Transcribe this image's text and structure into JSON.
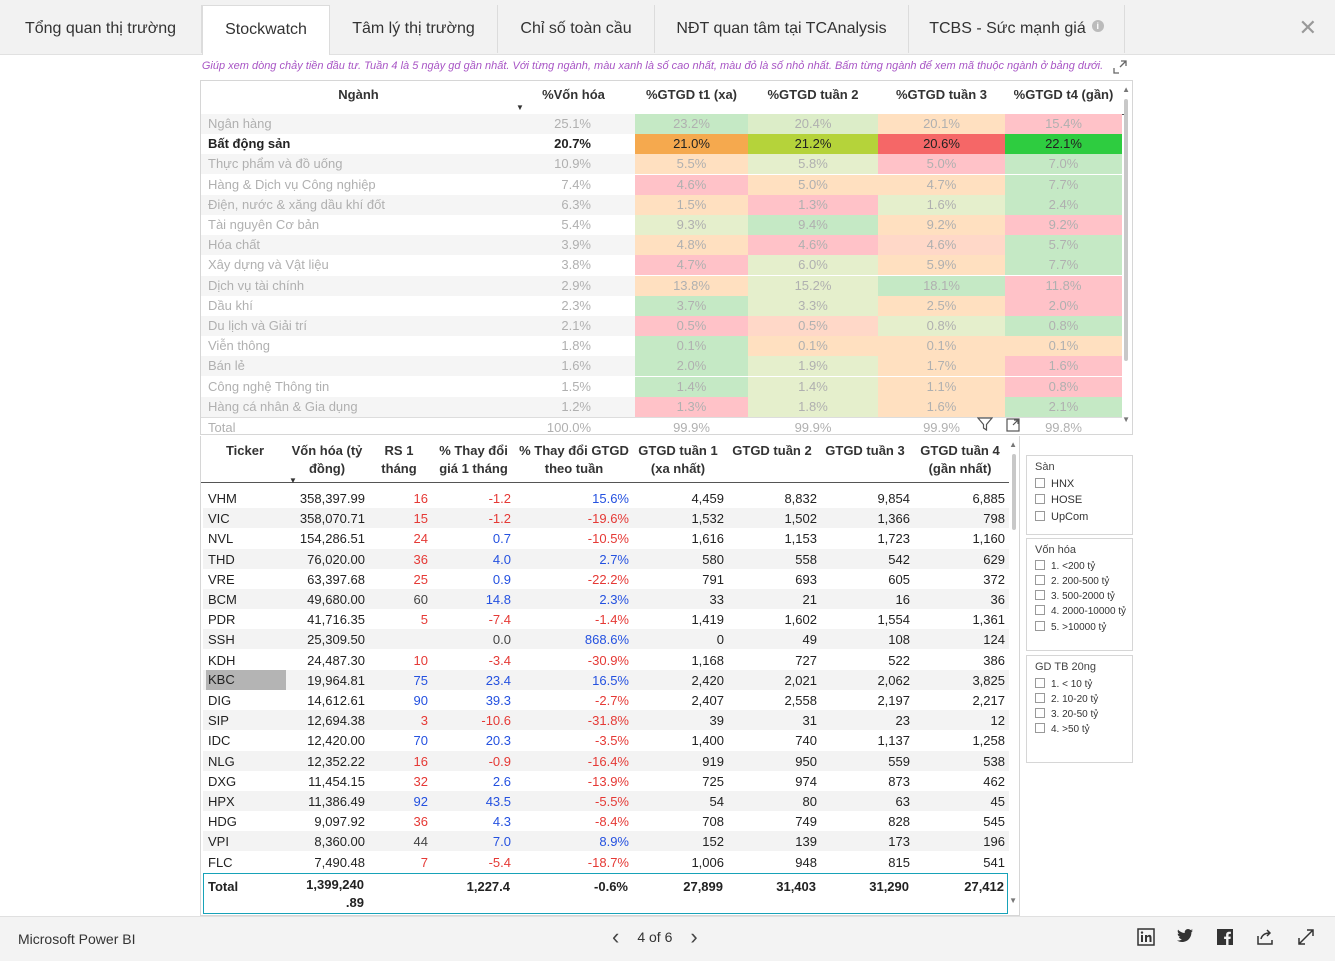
{
  "tabs": [
    {
      "label": "Tổng quan thị trường"
    },
    {
      "label": "Stockwatch"
    },
    {
      "label": "Tâm lý thị trường"
    },
    {
      "label": "Chỉ số toàn cầu"
    },
    {
      "label": "NĐT quan tâm tại TCAnalysis"
    },
    {
      "label": "TCBS - Sức mạnh giá"
    }
  ],
  "close_label": "✕",
  "hint": "Giúp xem dòng chảy tiền đầu tư. Tuần 4 là 5 ngày gd gần nhất. Với từng ngành, màu xanh là số cao nhất, màu đỏ là số nhỏ nhất. Bấm từng ngành để xem mã thuộc ngành ở bảng dưới.",
  "sector_table": {
    "headers": [
      "Ngành",
      "%Vốn hóa",
      "%GTGD t1 (xa)",
      "%GTGD tuần 2",
      "%GTGD tuần 3",
      "%GTGD t4 (gần)"
    ],
    "rows": [
      {
        "name": "Ngân hàng",
        "cap": "25.1%",
        "v": [
          "23.2%",
          "20.4%",
          "20.1%",
          "15.4%"
        ],
        "bg": [
          "#c5e9c5",
          "#dcedc8",
          "#ffe0c0",
          "#ffc2c8"
        ]
      },
      {
        "name": "Bất động sản",
        "cap": "20.7%",
        "v": [
          "21.0%",
          "21.2%",
          "20.6%",
          "22.1%"
        ],
        "bg": [
          "#f5a94e",
          "#b5d33a",
          "#f56767",
          "#2ecc40"
        ]
      },
      {
        "name": "Thực phẩm và đồ uống",
        "cap": "10.9%",
        "v": [
          "5.5%",
          "5.8%",
          "5.0%",
          "7.0%"
        ],
        "bg": [
          "#ffe0c0",
          "#e5efcc",
          "#ffc2c8",
          "#c5e9c5"
        ]
      },
      {
        "name": "Hàng & Dịch vụ Công nghiệp",
        "cap": "7.4%",
        "v": [
          "4.6%",
          "5.0%",
          "4.7%",
          "7.7%"
        ],
        "bg": [
          "#ffc2c8",
          "#ffe0c0",
          "#ffe0c0",
          "#c5e9c5"
        ]
      },
      {
        "name": "Điện, nước & xăng dầu khí đốt",
        "cap": "6.3%",
        "v": [
          "1.5%",
          "1.3%",
          "1.6%",
          "2.4%"
        ],
        "bg": [
          "#ffe0c0",
          "#ffc2c8",
          "#e5efcc",
          "#c5e9c5"
        ]
      },
      {
        "name": "Tài nguyên Cơ bản",
        "cap": "5.4%",
        "v": [
          "9.3%",
          "9.4%",
          "9.2%",
          "9.2%"
        ],
        "bg": [
          "#e5efcc",
          "#c5e9c5",
          "#ffe0c0",
          "#ffc2c8"
        ]
      },
      {
        "name": "Hóa chất",
        "cap": "3.9%",
        "v": [
          "4.8%",
          "4.6%",
          "4.6%",
          "5.7%"
        ],
        "bg": [
          "#ffe0c0",
          "#ffc2c8",
          "#ffd8c8",
          "#c5e9c5"
        ]
      },
      {
        "name": "Xây dựng và Vật liệu",
        "cap": "3.8%",
        "v": [
          "4.7%",
          "6.0%",
          "5.9%",
          "7.7%"
        ],
        "bg": [
          "#ffc2c8",
          "#e5efcc",
          "#ffe0c0",
          "#c5e9c5"
        ]
      },
      {
        "name": "Dịch vụ tài chính",
        "cap": "2.9%",
        "v": [
          "13.8%",
          "15.2%",
          "18.1%",
          "11.8%"
        ],
        "bg": [
          "#ffe0c0",
          "#e5efcc",
          "#c5e9c5",
          "#ffc2c8"
        ]
      },
      {
        "name": "Dầu khí",
        "cap": "2.3%",
        "v": [
          "3.7%",
          "3.3%",
          "2.5%",
          "2.0%"
        ],
        "bg": [
          "#c5e9c5",
          "#e5efcc",
          "#ffe0c0",
          "#ffc2c8"
        ]
      },
      {
        "name": "Du lịch và Giải trí",
        "cap": "2.1%",
        "v": [
          "0.5%",
          "0.5%",
          "0.8%",
          "0.8%"
        ],
        "bg": [
          "#ffc2c8",
          "#ffd8c8",
          "#e5efcc",
          "#c5e9c5"
        ]
      },
      {
        "name": "Viễn thông",
        "cap": "1.8%",
        "v": [
          "0.1%",
          "0.1%",
          "0.1%",
          "0.1%"
        ],
        "bg": [
          "#c5e9c5",
          "#ffe0c0",
          "#ffe0c0",
          "#ffe0c0"
        ]
      },
      {
        "name": "Bán lẻ",
        "cap": "1.6%",
        "v": [
          "2.0%",
          "1.9%",
          "1.7%",
          "1.6%"
        ],
        "bg": [
          "#c5e9c5",
          "#e5efcc",
          "#ffe0c0",
          "#ffc2c8"
        ]
      },
      {
        "name": "Công nghệ Thông tin",
        "cap": "1.5%",
        "v": [
          "1.4%",
          "1.4%",
          "1.1%",
          "0.8%"
        ],
        "bg": [
          "#c5e9c5",
          "#e5efcc",
          "#ffe0c0",
          "#ffc2c8"
        ]
      },
      {
        "name": "Hàng cá nhân & Gia dụng",
        "cap": "1.2%",
        "v": [
          "1.3%",
          "1.8%",
          "1.6%",
          "2.1%"
        ],
        "bg": [
          "#ffc2c8",
          "#e5efcc",
          "#ffe0c0",
          "#c5e9c5"
        ]
      }
    ],
    "total": {
      "name": "Total",
      "cap": "100.0%",
      "v": [
        "99.9%",
        "99.9%",
        "99.9%",
        "99.8%"
      ]
    }
  },
  "stock_table": {
    "headers": [
      "Ticker",
      "Vốn hóa (tỷ đồng)",
      "RS 1 tháng",
      "% Thay đổi giá 1 tháng",
      "% Thay đổi GTGD theo tuần",
      "GTGD tuần 1 (xa nhất)",
      "GTGD tuần 2",
      "GTGD tuần 3",
      "GTGD tuần 4 (gần nhất)"
    ],
    "rows": [
      {
        "tk": "VHM",
        "cap": "358,397.99",
        "rs": "16",
        "rsc": "red",
        "pc": "-1.2",
        "pcc": "red",
        "gw": "15.6%",
        "gwc": "blue",
        "g": [
          "4,459",
          "8,832",
          "9,854",
          "6,885"
        ]
      },
      {
        "tk": "VIC",
        "cap": "358,070.71",
        "rs": "15",
        "rsc": "red",
        "pc": "-1.2",
        "pcc": "red",
        "gw": "-19.6%",
        "gwc": "red",
        "g": [
          "1,532",
          "1,502",
          "1,366",
          "798"
        ]
      },
      {
        "tk": "NVL",
        "cap": "154,286.51",
        "rs": "24",
        "rsc": "red",
        "pc": "0.7",
        "pcc": "blue",
        "gw": "-10.5%",
        "gwc": "red",
        "g": [
          "1,616",
          "1,153",
          "1,723",
          "1,160"
        ]
      },
      {
        "tk": "THD",
        "cap": "76,020.00",
        "rs": "36",
        "rsc": "red",
        "pc": "4.0",
        "pcc": "blue",
        "gw": "2.7%",
        "gwc": "blue",
        "g": [
          "580",
          "558",
          "542",
          "629"
        ]
      },
      {
        "tk": "VRE",
        "cap": "63,397.68",
        "rs": "25",
        "rsc": "red",
        "pc": "0.9",
        "pcc": "blue",
        "gw": "-22.2%",
        "gwc": "red",
        "g": [
          "791",
          "693",
          "605",
          "372"
        ]
      },
      {
        "tk": "BCM",
        "cap": "49,680.00",
        "rs": "60",
        "rsc": "dark",
        "pc": "14.8",
        "pcc": "blue",
        "gw": "2.3%",
        "gwc": "blue",
        "g": [
          "33",
          "21",
          "16",
          "36"
        ]
      },
      {
        "tk": "PDR",
        "cap": "41,716.35",
        "rs": "5",
        "rsc": "red",
        "pc": "-7.4",
        "pcc": "red",
        "gw": "-1.4%",
        "gwc": "red",
        "g": [
          "1,419",
          "1,602",
          "1,554",
          "1,361"
        ]
      },
      {
        "tk": "SSH",
        "cap": "25,309.50",
        "rs": "",
        "rsc": "dark",
        "pc": "0.0",
        "pcc": "dark",
        "gw": "868.6%",
        "gwc": "blue",
        "g": [
          "0",
          "49",
          "108",
          "124"
        ]
      },
      {
        "tk": "KDH",
        "cap": "24,487.30",
        "rs": "10",
        "rsc": "red",
        "pc": "-3.4",
        "pcc": "red",
        "gw": "-30.9%",
        "gwc": "red",
        "g": [
          "1,168",
          "727",
          "522",
          "386"
        ]
      },
      {
        "tk": "KBC",
        "cap": "19,964.81",
        "rs": "75",
        "rsc": "blue",
        "pc": "23.4",
        "pcc": "blue",
        "gw": "16.5%",
        "gwc": "blue",
        "g": [
          "2,420",
          "2,021",
          "2,062",
          "3,825"
        ],
        "sel": true
      },
      {
        "tk": "DIG",
        "cap": "14,612.61",
        "rs": "90",
        "rsc": "blue",
        "pc": "39.3",
        "pcc": "blue",
        "gw": "-2.7%",
        "gwc": "red",
        "g": [
          "2,407",
          "2,558",
          "2,197",
          "2,217"
        ]
      },
      {
        "tk": "SIP",
        "cap": "12,694.38",
        "rs": "3",
        "rsc": "red",
        "pc": "-10.6",
        "pcc": "red",
        "gw": "-31.8%",
        "gwc": "red",
        "g": [
          "39",
          "31",
          "23",
          "12"
        ]
      },
      {
        "tk": "IDC",
        "cap": "12,420.00",
        "rs": "70",
        "rsc": "blue",
        "pc": "20.3",
        "pcc": "blue",
        "gw": "-3.5%",
        "gwc": "red",
        "g": [
          "1,400",
          "740",
          "1,137",
          "1,258"
        ]
      },
      {
        "tk": "NLG",
        "cap": "12,352.22",
        "rs": "16",
        "rsc": "red",
        "pc": "-0.9",
        "pcc": "red",
        "gw": "-16.4%",
        "gwc": "red",
        "g": [
          "919",
          "950",
          "559",
          "538"
        ]
      },
      {
        "tk": "DXG",
        "cap": "11,454.15",
        "rs": "32",
        "rsc": "red",
        "pc": "2.6",
        "pcc": "blue",
        "gw": "-13.9%",
        "gwc": "red",
        "g": [
          "725",
          "974",
          "873",
          "462"
        ]
      },
      {
        "tk": "HPX",
        "cap": "11,386.49",
        "rs": "92",
        "rsc": "blue",
        "pc": "43.5",
        "pcc": "blue",
        "gw": "-5.5%",
        "gwc": "red",
        "g": [
          "54",
          "80",
          "63",
          "45"
        ]
      },
      {
        "tk": "HDG",
        "cap": "9,097.92",
        "rs": "36",
        "rsc": "red",
        "pc": "4.3",
        "pcc": "blue",
        "gw": "-8.4%",
        "gwc": "red",
        "g": [
          "708",
          "749",
          "828",
          "545"
        ]
      },
      {
        "tk": "VPI",
        "cap": "8,360.00",
        "rs": "44",
        "rsc": "dark",
        "pc": "7.0",
        "pcc": "blue",
        "gw": "8.9%",
        "gwc": "blue",
        "g": [
          "152",
          "139",
          "173",
          "196"
        ]
      },
      {
        "tk": "FLC",
        "cap": "7,490.48",
        "rs": "7",
        "rsc": "red",
        "pc": "-5.4",
        "pcc": "red",
        "gw": "-18.7%",
        "gwc": "red",
        "g": [
          "1,006",
          "948",
          "815",
          "541"
        ]
      }
    ],
    "total": {
      "label": "Total",
      "cap_line1": "1,399,240",
      "cap_line2": ".89",
      "pc": "1,227.4",
      "gw": "-0.6%",
      "g": [
        "27,899",
        "31,403",
        "31,290",
        "27,412"
      ]
    }
  },
  "slicers": {
    "san": {
      "title": "Sàn",
      "options": [
        "HNX",
        "HOSE",
        "UpCom"
      ]
    },
    "von_hoa": {
      "title": "Vốn hóa",
      "options": [
        "1. <200 tỷ",
        "2. 200-500 tỷ",
        "3. 500-2000 tỷ",
        "4. 2000-10000 tỷ",
        "5. >10000 tỷ"
      ]
    },
    "gd_tb": {
      "title": "GD TB 20ng",
      "options": [
        "1. < 10 tỷ",
        "2. 10-20 tỷ",
        "3. 20-50 tỷ",
        "4. >50 tỷ"
      ]
    }
  },
  "footer": {
    "brand": "Microsoft Power BI",
    "page": "4 of 6"
  },
  "icons": [
    "info-icon",
    "close-icon",
    "focus-mode-icon",
    "filter-icon",
    "chevron-left-icon",
    "chevron-right-icon",
    "linkedin-icon",
    "twitter-icon",
    "facebook-icon",
    "share-icon",
    "fullscreen-icon",
    "sort-desc-icon"
  ],
  "colors": {
    "accent": "#17a2b8",
    "positive": "#2451e0",
    "negative": "#e53935",
    "hint": "#a855c5"
  }
}
